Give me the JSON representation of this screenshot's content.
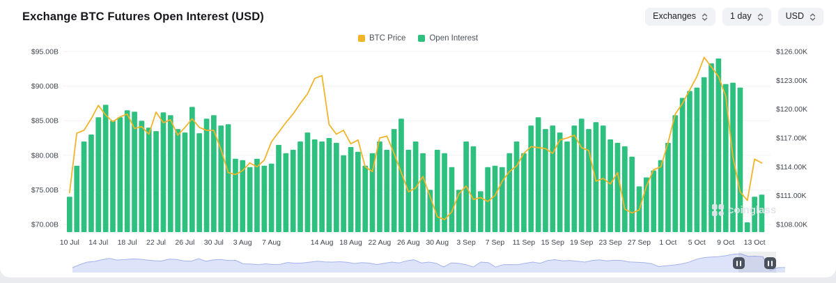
{
  "header": {
    "title": "Exchange BTC Futures Open Interest (USD)",
    "controls": [
      {
        "label": "Exchanges"
      },
      {
        "label": "1 day"
      },
      {
        "label": "USD"
      }
    ]
  },
  "legend": [
    {
      "label": "BTC Price",
      "color": "#F0B429"
    },
    {
      "label": "Open Interest",
      "color": "#2EC07F"
    }
  ],
  "watermark": "coinglass",
  "chart_data": {
    "type": "combo",
    "title": "Exchange BTC Futures Open Interest (USD)",
    "grid": "horizontal",
    "legend_position": "top-center",
    "categories": [
      "10 Jul",
      "11 Jul",
      "12 Jul",
      "13 Jul",
      "14 Jul",
      "15 Jul",
      "16 Jul",
      "17 Jul",
      "18 Jul",
      "19 Jul",
      "20 Jul",
      "21 Jul",
      "22 Jul",
      "23 Jul",
      "24 Jul",
      "25 Jul",
      "26 Jul",
      "27 Jul",
      "28 Jul",
      "29 Jul",
      "30 Jul",
      "31 Jul",
      "1 Aug",
      "2 Aug",
      "3 Aug",
      "4 Aug",
      "5 Aug",
      "6 Aug",
      "7 Aug",
      "8 Aug",
      "9 Aug",
      "10 Aug",
      "11 Aug",
      "12 Aug",
      "13 Aug",
      "14 Aug",
      "15 Aug",
      "16 Aug",
      "17 Aug",
      "18 Aug",
      "19 Aug",
      "20 Aug",
      "21 Aug",
      "22 Aug",
      "23 Aug",
      "24 Aug",
      "25 Aug",
      "26 Aug",
      "27 Aug",
      "28 Aug",
      "29 Aug",
      "30 Aug",
      "31 Aug",
      "1 Sep",
      "2 Sep",
      "3 Sep",
      "4 Sep",
      "5 Sep",
      "6 Sep",
      "7 Sep",
      "8 Sep",
      "9 Sep",
      "10 Sep",
      "11 Sep",
      "12 Sep",
      "13 Sep",
      "14 Sep",
      "15 Sep",
      "16 Sep",
      "17 Sep",
      "18 Sep",
      "19 Sep",
      "20 Sep",
      "21 Sep",
      "22 Sep",
      "23 Sep",
      "24 Sep",
      "25 Sep",
      "26 Sep",
      "27 Sep",
      "28 Sep",
      "29 Sep",
      "30 Sep",
      "1 Oct",
      "2 Oct",
      "3 Oct",
      "4 Oct",
      "5 Oct",
      "6 Oct",
      "7 Oct",
      "8 Oct",
      "9 Oct",
      "10 Oct",
      "11 Oct",
      "12 Oct",
      "13 Oct",
      "14 Oct"
    ],
    "series": [
      {
        "name": "Open Interest",
        "type": "bar",
        "axis": "left",
        "unit": "USD billions",
        "color": "#2EC07F",
        "values": [
          74.0,
          78.5,
          82.0,
          83.0,
          85.5,
          87.3,
          85.0,
          85.5,
          86.5,
          86.3,
          85.0,
          84.0,
          83.5,
          86.2,
          85.8,
          83.8,
          83.3,
          87.0,
          83.2,
          85.3,
          85.8,
          84.3,
          84.5,
          79.5,
          79.3,
          78.3,
          79.5,
          78.5,
          78.8,
          81.5,
          80.3,
          80.8,
          82.0,
          83.3,
          82.3,
          82.0,
          82.5,
          81.8,
          80.0,
          81.2,
          80.5,
          78.5,
          80.3,
          82.0,
          80.8,
          83.8,
          85.3,
          80.8,
          82.0,
          80.3,
          75.0,
          80.8,
          80.3,
          78.3,
          75.0,
          82.0,
          81.3,
          74.8,
          78.3,
          78.5,
          78.3,
          80.3,
          82.0,
          80.3,
          84.3,
          85.5,
          83.8,
          84.3,
          83.3,
          82.0,
          84.3,
          85.3,
          83.8,
          84.8,
          84.3,
          82.3,
          81.8,
          81.3,
          79.8,
          75.5,
          76.8,
          77.8,
          79.3,
          81.8,
          85.8,
          88.3,
          89.3,
          89.8,
          91.3,
          93.3,
          94.0,
          90.3,
          90.5,
          89.8,
          70.3,
          74.0,
          74.3
        ]
      },
      {
        "name": "BTC Price",
        "type": "line",
        "axis": "right",
        "unit": "USD thousands",
        "color": "#F0B429",
        "values": [
          111.3,
          117.5,
          117.8,
          119.0,
          120.4,
          119.4,
          118.7,
          119.2,
          119.5,
          118.0,
          118.2,
          117.4,
          119.7,
          118.6,
          118.9,
          117.3,
          118.1,
          119.0,
          118.1,
          117.8,
          117.8,
          115.8,
          113.4,
          113.2,
          113.6,
          114.4,
          114.0,
          114.7,
          116.6,
          117.6,
          118.6,
          119.5,
          120.6,
          121.6,
          123.2,
          123.5,
          118.4,
          117.4,
          117.8,
          116.4,
          116.8,
          114.0,
          113.5,
          117.0,
          117.2,
          115.4,
          113.4,
          111.4,
          111.8,
          113.0,
          110.9,
          108.8,
          108.5,
          109.3,
          111.2,
          112.0,
          110.6,
          110.8,
          110.4,
          111.0,
          112.5,
          113.5,
          114.1,
          115.4,
          116.1,
          116.0,
          115.9,
          115.4,
          116.8,
          117.0,
          117.3,
          116.0,
          115.7,
          112.5,
          112.8,
          112.2,
          113.4,
          109.6,
          109.2,
          109.5,
          112.0,
          113.7,
          114.0,
          116.5,
          119.5,
          120.6,
          122.0,
          123.4,
          125.4,
          124.4,
          123.4,
          121.4,
          115.0,
          111.4,
          110.5,
          114.8,
          114.4
        ]
      }
    ],
    "y_left": {
      "labels": [
        "$95.00B",
        "$90.00B",
        "$85.00B",
        "$80.00B",
        "$75.00B",
        "$70.00B"
      ],
      "values": [
        95,
        90,
        85,
        80,
        75,
        70
      ],
      "min": 69,
      "max": 95
    },
    "y_right": {
      "labels": [
        "$126.00K",
        "$123.00K",
        "$120.00K",
        "$117.00K",
        "$114.00K",
        "$111.00K",
        "$108.00K"
      ],
      "values": [
        126,
        123,
        120,
        117,
        114,
        111,
        108
      ],
      "min": 108,
      "max": 126
    },
    "x_ticks": [
      "10 Jul",
      "14 Jul",
      "18 Jul",
      "22 Jul",
      "26 Jul",
      "30 Jul",
      "3 Aug",
      "7 Aug",
      "14 Aug",
      "18 Aug",
      "22 Aug",
      "26 Aug",
      "30 Aug",
      "3 Sep",
      "7 Sep",
      "11 Sep",
      "15 Sep",
      "19 Sep",
      "23 Sep",
      "27 Sep",
      "1 Oct",
      "5 Oct",
      "9 Oct",
      "13 Oct"
    ]
  }
}
